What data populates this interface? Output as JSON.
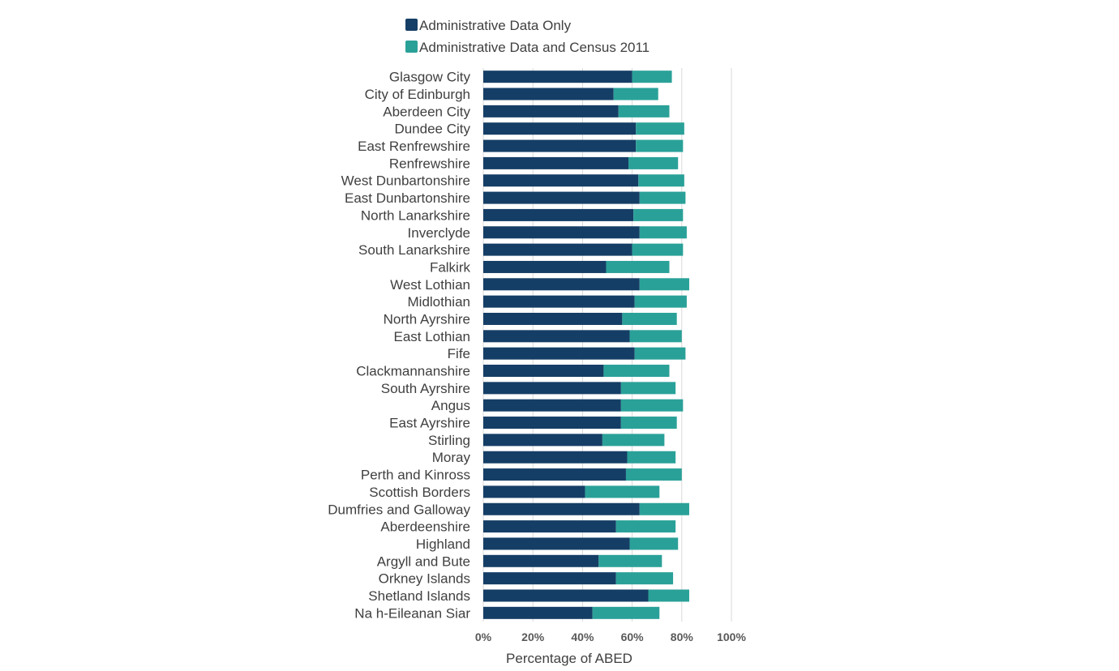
{
  "chart_data": {
    "type": "bar",
    "orientation": "horizontal",
    "stacked": true,
    "title": "",
    "xlabel": "Percentage of ABED",
    "ylabel": "",
    "xlim": [
      0,
      100
    ],
    "x_ticks": [
      "0%",
      "20%",
      "40%",
      "60%",
      "80%",
      "100%"
    ],
    "grid": true,
    "legend_position": "top",
    "categories": [
      "Glasgow City",
      "City of Edinburgh",
      "Aberdeen City",
      "Dundee City",
      "East Renfrewshire",
      "Renfrewshire",
      "West Dunbartonshire",
      "East Dunbartonshire",
      "North Lanarkshire",
      "Inverclyde",
      "South Lanarkshire",
      "Falkirk",
      "West Lothian",
      "Midlothian",
      "North Ayrshire",
      "East Lothian",
      "Fife",
      "Clackmannanshire",
      "South Ayrshire",
      "Angus",
      "East Ayrshire",
      "Stirling",
      "Moray",
      "Perth and Kinross",
      "Scottish Borders",
      "Dumfries and Galloway",
      "Aberdeenshire",
      "Highland",
      "Argyll and Bute",
      "Orkney Islands",
      "Shetland Islands",
      "Na h-Eileanan Siar"
    ],
    "series": [
      {
        "name": "Administrative Data Only",
        "color": "#153E66",
        "values": [
          60,
          52.5,
          54.5,
          61.5,
          61.5,
          58.5,
          62.5,
          63,
          60.5,
          63,
          60,
          49.5,
          63,
          61,
          56,
          59,
          61,
          48.5,
          55.5,
          55.5,
          55.5,
          48,
          58,
          57.5,
          41,
          63,
          53.5,
          59,
          46.5,
          53.5,
          66.5,
          44
        ]
      },
      {
        "name": "Administrative Data and Census 2011",
        "color": "#2AA198",
        "values": [
          16,
          18,
          20.5,
          19.5,
          19,
          20,
          18.5,
          18.5,
          20,
          19,
          20.5,
          25.5,
          20,
          21,
          22,
          21,
          20.5,
          26.5,
          22,
          25,
          22.5,
          25,
          19.5,
          22.5,
          30,
          20,
          24,
          19.5,
          25.5,
          23,
          16.5,
          27
        ]
      }
    ]
  }
}
